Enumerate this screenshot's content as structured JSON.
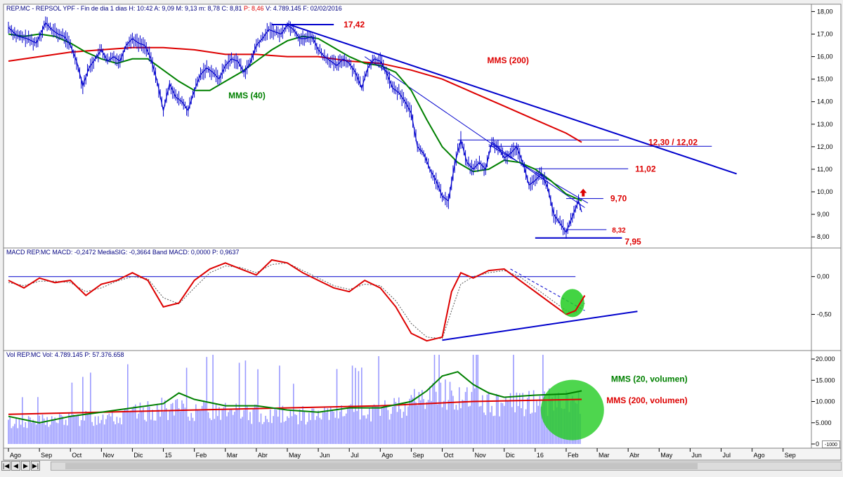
{
  "header": {
    "price_info_prefix": "REP.MC - REPSOL YPF - Fin de dia 1 dias H: 10:42 A: 9,09 M: 9,13 m: 8,78 C: 8,81",
    "price_info_change": "P: 8,46",
    "price_info_suffix": "V: 4.789.145 F: 02/02/2016",
    "macd_info": "MACD REP.MC MACD: -0,2472 MediaSIG: -0,3664 Band MACD: 0,0000 P: 0,9637",
    "vol_info": "Vol REP.MC Vol: 4.789.145 P: 57.376.658"
  },
  "colors": {
    "price": "#0000cc",
    "mms40": "#008000",
    "mms200": "#dd0000",
    "trend": "#0000cc",
    "annotation": "#dd0000",
    "signal": "#555555",
    "highlight": "#22cc22",
    "volume_bars": "#9999ff"
  },
  "annotations": {
    "high": "17,42",
    "resistance_range": "12,30 / 12,02",
    "res_1102": "11,02",
    "res_970": "9,70",
    "sup_832": "8,32",
    "low": "7,95",
    "mms200_label": "MMS (200)",
    "mms40_label": "MMS (40)",
    "vol_mms20_label": "MMS (20, volumen)",
    "vol_mms200_label": "MMS (200, volumen)"
  },
  "navigation": {
    "first": "|◀",
    "prev": "◀",
    "next": "▶",
    "last": "▶|",
    "zoom": "-1000"
  },
  "chart_data": [
    {
      "type": "line",
      "panel": "price",
      "x_ticks": [
        "Ago",
        "Sep",
        "Oct",
        "Nov",
        "Dic",
        "15",
        "Feb",
        "Mar",
        "Abr",
        "May",
        "Jun",
        "Jul",
        "Ago",
        "Sep",
        "Oct",
        "Nov",
        "Dic",
        "16",
        "Feb",
        "Mar",
        "Abr",
        "May",
        "Jun",
        "Jul",
        "Ago",
        "Sep"
      ],
      "y_ticks": [
        "8,00",
        "9,00",
        "10,00",
        "11,00",
        "12,00",
        "13,00",
        "14,00",
        "15,00",
        "16,00",
        "17,00",
        "18,00"
      ],
      "ylim": [
        7.6,
        18.2
      ],
      "x_range_months": [
        0,
        25.8
      ],
      "price_path": [
        [
          0,
          17.3
        ],
        [
          0.3,
          16.9
        ],
        [
          0.6,
          16.8
        ],
        [
          0.9,
          16.6
        ],
        [
          1.2,
          17.5
        ],
        [
          1.4,
          17.2
        ],
        [
          1.6,
          17.0
        ],
        [
          1.8,
          16.9
        ],
        [
          2.0,
          16.5
        ],
        [
          2.2,
          15.8
        ],
        [
          2.4,
          14.7
        ],
        [
          2.6,
          15.5
        ],
        [
          2.8,
          15.9
        ],
        [
          3.0,
          16.3
        ],
        [
          3.2,
          15.8
        ],
        [
          3.4,
          16.0
        ],
        [
          3.6,
          15.8
        ],
        [
          3.8,
          16.5
        ],
        [
          4.0,
          16.8
        ],
        [
          4.2,
          16.6
        ],
        [
          4.4,
          16.5
        ],
        [
          4.6,
          15.9
        ],
        [
          4.8,
          14.9
        ],
        [
          5.0,
          13.6
        ],
        [
          5.2,
          14.8
        ],
        [
          5.4,
          14.2
        ],
        [
          5.6,
          14.0
        ],
        [
          5.8,
          13.6
        ],
        [
          6.0,
          14.5
        ],
        [
          6.2,
          15.2
        ],
        [
          6.4,
          15.5
        ],
        [
          6.6,
          15.3
        ],
        [
          6.8,
          15.0
        ],
        [
          7.0,
          15.6
        ],
        [
          7.2,
          15.9
        ],
        [
          7.4,
          15.8
        ],
        [
          7.6,
          15.3
        ],
        [
          7.8,
          15.7
        ],
        [
          8.0,
          16.5
        ],
        [
          8.2,
          16.8
        ],
        [
          8.4,
          17.2
        ],
        [
          8.6,
          17.1
        ],
        [
          8.8,
          17.0
        ],
        [
          9.0,
          17.4
        ],
        [
          9.2,
          17.2
        ],
        [
          9.4,
          16.8
        ],
        [
          9.6,
          16.8
        ],
        [
          9.8,
          16.9
        ],
        [
          10.0,
          16.3
        ],
        [
          10.2,
          16.0
        ],
        [
          10.4,
          15.8
        ],
        [
          10.6,
          15.6
        ],
        [
          10.8,
          15.9
        ],
        [
          11.0,
          15.7
        ],
        [
          11.2,
          15.3
        ],
        [
          11.4,
          14.6
        ],
        [
          11.6,
          15.5
        ],
        [
          11.8,
          15.9
        ],
        [
          12.0,
          15.8
        ],
        [
          12.2,
          15.3
        ],
        [
          12.4,
          14.6
        ],
        [
          12.6,
          14.4
        ],
        [
          12.8,
          14.0
        ],
        [
          13.0,
          13.5
        ],
        [
          13.2,
          12.0
        ],
        [
          13.4,
          11.7
        ],
        [
          13.6,
          11.0
        ],
        [
          13.8,
          10.5
        ],
        [
          14.0,
          9.8
        ],
        [
          14.2,
          9.6
        ],
        [
          14.4,
          11.2
        ],
        [
          14.6,
          12.3
        ],
        [
          14.8,
          11.3
        ],
        [
          15.0,
          11.0
        ],
        [
          15.2,
          11.3
        ],
        [
          15.4,
          11.0
        ],
        [
          15.6,
          12.2
        ],
        [
          15.8,
          12.0
        ],
        [
          16.0,
          11.5
        ],
        [
          16.2,
          11.7
        ],
        [
          16.4,
          12.0
        ],
        [
          16.6,
          11.3
        ],
        [
          16.8,
          10.3
        ],
        [
          17.0,
          10.5
        ],
        [
          17.2,
          10.8
        ],
        [
          17.4,
          10.2
        ],
        [
          17.6,
          9.0
        ],
        [
          17.8,
          8.6
        ],
        [
          18.0,
          8.2
        ],
        [
          18.2,
          8.9
        ],
        [
          18.4,
          9.6
        ],
        [
          18.5,
          9.1
        ]
      ],
      "mms40_path": [
        [
          0,
          17.0
        ],
        [
          0.5,
          16.9
        ],
        [
          1.0,
          17.0
        ],
        [
          1.5,
          16.9
        ],
        [
          2.0,
          16.6
        ],
        [
          2.5,
          16.2
        ],
        [
          3.0,
          15.9
        ],
        [
          3.5,
          15.7
        ],
        [
          4.0,
          15.9
        ],
        [
          4.5,
          15.9
        ],
        [
          5.0,
          15.4
        ],
        [
          5.5,
          14.9
        ],
        [
          6.0,
          14.5
        ],
        [
          6.5,
          14.5
        ],
        [
          7.0,
          14.9
        ],
        [
          7.5,
          15.3
        ],
        [
          8.0,
          15.8
        ],
        [
          8.5,
          16.3
        ],
        [
          9.0,
          16.7
        ],
        [
          9.5,
          16.9
        ],
        [
          10.0,
          16.8
        ],
        [
          10.5,
          16.4
        ],
        [
          11.0,
          16.0
        ],
        [
          11.5,
          15.7
        ],
        [
          12.0,
          15.6
        ],
        [
          12.5,
          15.3
        ],
        [
          13.0,
          14.5
        ],
        [
          13.5,
          13.2
        ],
        [
          14.0,
          12.0
        ],
        [
          14.5,
          11.3
        ],
        [
          15.0,
          10.9
        ],
        [
          15.5,
          11.0
        ],
        [
          16.0,
          11.4
        ],
        [
          16.5,
          11.3
        ],
        [
          17.0,
          11.0
        ],
        [
          17.5,
          10.5
        ],
        [
          18.0,
          9.9
        ],
        [
          18.5,
          9.6
        ]
      ],
      "mms200_path": [
        [
          0,
          15.8
        ],
        [
          1,
          16.0
        ],
        [
          2,
          16.2
        ],
        [
          3,
          16.3
        ],
        [
          4,
          16.4
        ],
        [
          5,
          16.4
        ],
        [
          6,
          16.3
        ],
        [
          7,
          16.1
        ],
        [
          8,
          16.1
        ],
        [
          9,
          16.0
        ],
        [
          10,
          16.0
        ],
        [
          11,
          15.8
        ],
        [
          12,
          15.7
        ],
        [
          13,
          15.4
        ],
        [
          14,
          15.0
        ],
        [
          15,
          14.4
        ],
        [
          16,
          13.8
        ],
        [
          17,
          13.2
        ],
        [
          18,
          12.6
        ],
        [
          18.5,
          12.2
        ]
      ],
      "main_downtrend": [
        [
          9.0,
          17.45
        ],
        [
          23.5,
          10.8
        ]
      ],
      "secondary_downtrend": [
        [
          11.5,
          16.0
        ],
        [
          18.6,
          9.3
        ]
      ],
      "tertiary_downtrend": [
        [
          15.5,
          12.1
        ],
        [
          18.7,
          9.5
        ]
      ],
      "horizontal_levels": [
        {
          "value": 17.42,
          "x0": 8.5,
          "x1": 10.5
        },
        {
          "value": 12.3,
          "x0": 14.5,
          "x1": 19.7
        },
        {
          "value": 12.02,
          "x0": 15.5,
          "x1": 22.7
        },
        {
          "value": 11.02,
          "x0": 17.0,
          "x1": 20.0
        },
        {
          "value": 9.7,
          "x0": 18.0,
          "x1": 19.2
        },
        {
          "value": 8.32,
          "x0": 18.0,
          "x1": 19.3
        },
        {
          "value": 7.95,
          "x0": 17.0,
          "x1": 19.8
        }
      ],
      "signal_arrow": {
        "x": 18.55,
        "value": 9.95
      }
    },
    {
      "type": "line",
      "panel": "macd",
      "y_ticks": [
        "0,00",
        "-0,50"
      ],
      "ylim": [
        -0.95,
        0.35
      ],
      "band_line": 0.0,
      "macd_path": [
        [
          0,
          -0.05
        ],
        [
          0.5,
          -0.15
        ],
        [
          1.0,
          -0.02
        ],
        [
          1.5,
          -0.08
        ],
        [
          2.0,
          -0.05
        ],
        [
          2.5,
          -0.25
        ],
        [
          3.0,
          -0.1
        ],
        [
          3.5,
          -0.05
        ],
        [
          4.0,
          0.05
        ],
        [
          4.5,
          -0.05
        ],
        [
          5.0,
          -0.4
        ],
        [
          5.5,
          -0.35
        ],
        [
          6.0,
          -0.05
        ],
        [
          6.5,
          0.1
        ],
        [
          7.0,
          0.18
        ],
        [
          7.5,
          0.1
        ],
        [
          8.0,
          0.02
        ],
        [
          8.5,
          0.22
        ],
        [
          9.0,
          0.18
        ],
        [
          9.5,
          0.05
        ],
        [
          10.0,
          -0.05
        ],
        [
          10.5,
          -0.15
        ],
        [
          11.0,
          -0.2
        ],
        [
          11.5,
          -0.05
        ],
        [
          12.0,
          -0.15
        ],
        [
          12.5,
          -0.4
        ],
        [
          13.0,
          -0.75
        ],
        [
          13.5,
          -0.85
        ],
        [
          14.0,
          -0.8
        ],
        [
          14.3,
          -0.2
        ],
        [
          14.6,
          0.05
        ],
        [
          15.0,
          -0.02
        ],
        [
          15.5,
          0.08
        ],
        [
          16.0,
          0.1
        ],
        [
          16.5,
          -0.05
        ],
        [
          17.0,
          -0.2
        ],
        [
          17.5,
          -0.35
        ],
        [
          18.0,
          -0.5
        ],
        [
          18.3,
          -0.45
        ],
        [
          18.6,
          -0.25
        ]
      ],
      "signal_path": [
        [
          0,
          -0.08
        ],
        [
          0.5,
          -0.12
        ],
        [
          1.0,
          -0.06
        ],
        [
          1.5,
          -0.06
        ],
        [
          2.0,
          -0.08
        ],
        [
          2.5,
          -0.2
        ],
        [
          3.0,
          -0.15
        ],
        [
          3.5,
          -0.06
        ],
        [
          4.0,
          0.0
        ],
        [
          4.5,
          -0.03
        ],
        [
          5.0,
          -0.28
        ],
        [
          5.5,
          -0.36
        ],
        [
          6.0,
          -0.15
        ],
        [
          6.5,
          0.05
        ],
        [
          7.0,
          0.14
        ],
        [
          7.5,
          0.12
        ],
        [
          8.0,
          0.05
        ],
        [
          8.5,
          0.16
        ],
        [
          9.0,
          0.18
        ],
        [
          9.5,
          0.08
        ],
        [
          10.0,
          -0.02
        ],
        [
          10.5,
          -0.12
        ],
        [
          11.0,
          -0.17
        ],
        [
          11.5,
          -0.1
        ],
        [
          12.0,
          -0.12
        ],
        [
          12.5,
          -0.32
        ],
        [
          13.0,
          -0.62
        ],
        [
          13.5,
          -0.8
        ],
        [
          14.0,
          -0.82
        ],
        [
          14.3,
          -0.45
        ],
        [
          14.6,
          -0.1
        ],
        [
          15.0,
          0.0
        ],
        [
          15.5,
          0.05
        ],
        [
          16.0,
          0.08
        ],
        [
          16.5,
          0.0
        ],
        [
          17.0,
          -0.15
        ],
        [
          17.5,
          -0.3
        ],
        [
          18.0,
          -0.45
        ],
        [
          18.3,
          -0.48
        ],
        [
          18.6,
          -0.35
        ]
      ],
      "support_trend": [
        [
          14.0,
          -0.84
        ],
        [
          20.3,
          -0.46
        ]
      ],
      "signal_trend": [
        [
          16.2,
          0.1
        ],
        [
          18.6,
          -0.45
        ]
      ],
      "highlight_circle": {
        "x": 18.2,
        "value": -0.35
      }
    },
    {
      "type": "bar",
      "panel": "volume",
      "y_ticks": [
        "20.000",
        "15.000",
        "10.000",
        "5.000",
        "0"
      ],
      "ylim": [
        0,
        21500
      ],
      "volume_profile": [
        [
          0,
          6000
        ],
        [
          2,
          7000
        ],
        [
          4,
          8500
        ],
        [
          5,
          10000
        ],
        [
          6,
          9500
        ],
        [
          8,
          8500
        ],
        [
          10,
          8000
        ],
        [
          12,
          9000
        ],
        [
          13,
          12000
        ],
        [
          14,
          15000
        ],
        [
          15,
          12000
        ],
        [
          16,
          11000
        ],
        [
          17,
          12000
        ],
        [
          18.5,
          12000
        ]
      ],
      "mms20_path": [
        [
          0,
          6500
        ],
        [
          1,
          5000
        ],
        [
          2,
          6500
        ],
        [
          3,
          7500
        ],
        [
          4,
          8500
        ],
        [
          5,
          9500
        ],
        [
          5.5,
          12000
        ],
        [
          6,
          10500
        ],
        [
          7,
          9000
        ],
        [
          8,
          9000
        ],
        [
          9,
          8000
        ],
        [
          10,
          7500
        ],
        [
          11,
          8500
        ],
        [
          12,
          8500
        ],
        [
          13,
          10000
        ],
        [
          13.5,
          12500
        ],
        [
          14,
          16000
        ],
        [
          14.5,
          17000
        ],
        [
          15,
          14000
        ],
        [
          15.5,
          12000
        ],
        [
          16,
          11000
        ],
        [
          17,
          11500
        ],
        [
          18,
          11800
        ],
        [
          18.5,
          12500
        ]
      ],
      "mms200_path": [
        [
          0,
          7000
        ],
        [
          3,
          7500
        ],
        [
          6,
          8000
        ],
        [
          9,
          8500
        ],
        [
          12,
          9000
        ],
        [
          15,
          10000
        ],
        [
          18.5,
          10500
        ]
      ],
      "highlight_circle": {
        "x": 18.2,
        "value": 8000
      }
    }
  ]
}
